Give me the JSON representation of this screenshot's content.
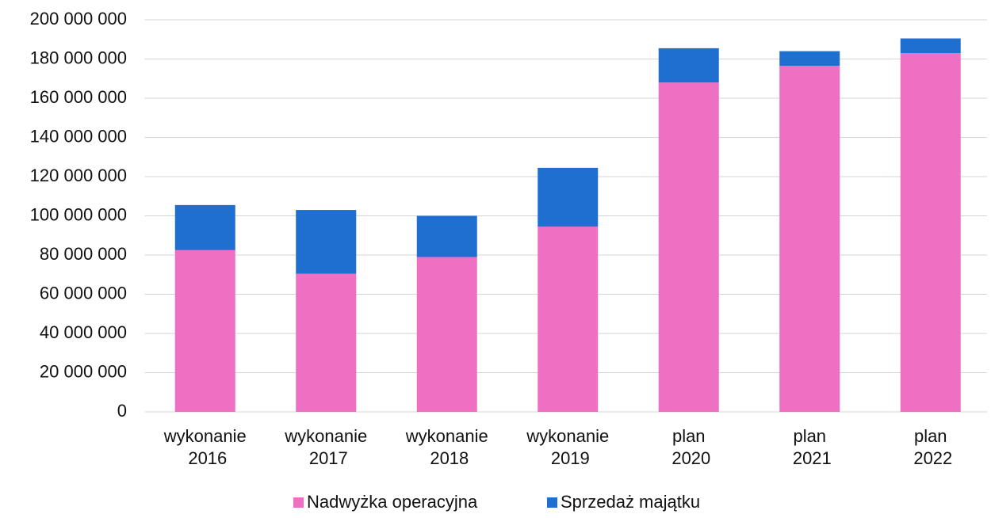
{
  "chart_data": {
    "type": "stacked_bar",
    "categories": [
      "wykonanie 2016",
      "wykonanie 2017",
      "wykonanie 2018",
      "wykonanie 2019",
      "plan 2020",
      "plan 2021",
      "plan 2022"
    ],
    "series": [
      {
        "name": "Nadwyżka operacyjna",
        "color": "#ef6fc3",
        "values": [
          82500000,
          70500000,
          79000000,
          94500000,
          168000000,
          176500000,
          183000000
        ]
      },
      {
        "name": "Sprzedaż majątku",
        "color": "#1f6fd1",
        "values": [
          23000000,
          32500000,
          21000000,
          30000000,
          17500000,
          7500000,
          7500000
        ]
      }
    ],
    "ylim": [
      0,
      200000000
    ],
    "yticks": [
      0,
      {
        "value": 20000000,
        "label": "20 000 000"
      },
      {
        "value": 40000000,
        "label": "40 000 000"
      },
      {
        "value": 60000000,
        "label": "60 000 000"
      },
      {
        "value": 80000000,
        "label": "80 000 000"
      },
      {
        "value": 100000000,
        "label": "100 000 000"
      },
      {
        "value": 120000000,
        "label": "120 000 000"
      },
      {
        "value": 140000000,
        "label": "140 000 000"
      },
      {
        "value": 160000000,
        "label": "160 000 000"
      },
      {
        "value": 180000000,
        "label": "180 000 000"
      },
      {
        "value": 200000000,
        "label": "200 000 000"
      }
    ],
    "grid": true,
    "legend": "bottom"
  }
}
